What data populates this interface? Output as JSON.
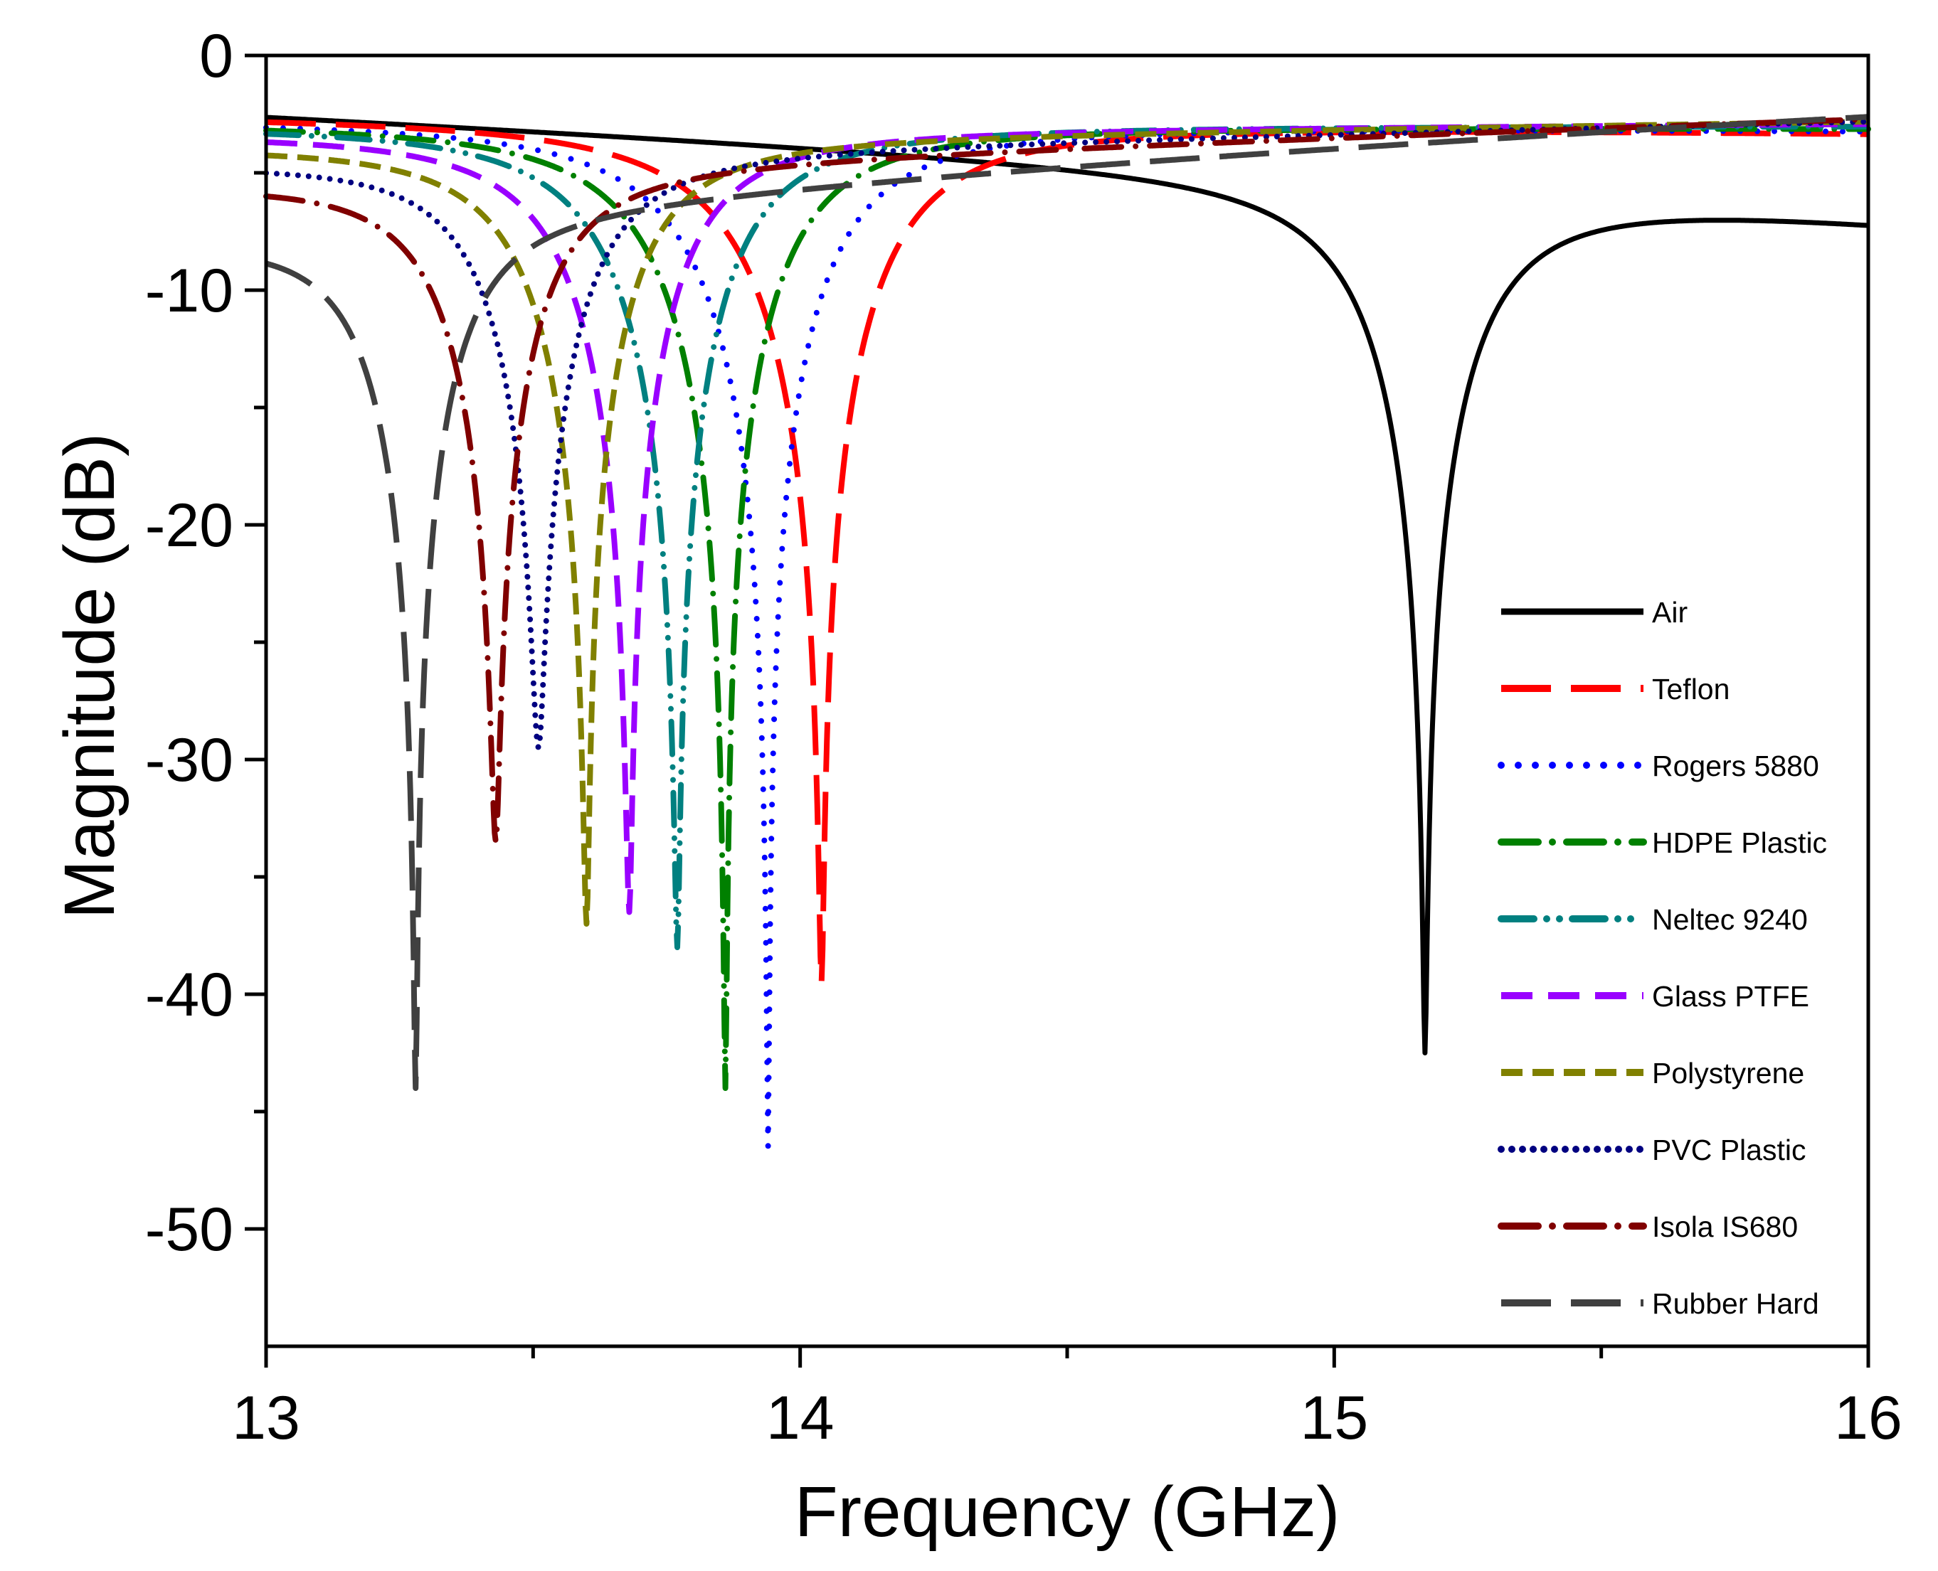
{
  "chart_data": {
    "type": "line",
    "title": "",
    "xlabel": "Frequency (GHz)",
    "ylabel": "Magnitude (dB)",
    "xlim": [
      13,
      16
    ],
    "ylim": [
      -55,
      0
    ],
    "xticks": [
      13,
      14,
      15,
      16
    ],
    "xtick_labels": [
      "13",
      "14",
      "15",
      "16"
    ],
    "xminor": [
      13.5,
      14.5,
      15.5
    ],
    "yticks": [
      0,
      -10,
      -20,
      -30,
      -40,
      -50
    ],
    "ytick_labels": [
      "0",
      "-10",
      "-20",
      "-30",
      "-40",
      "-50"
    ],
    "yminor": [
      -5,
      -15,
      -25,
      -35,
      -45
    ],
    "grid": false,
    "legend_position": "right",
    "series": [
      {
        "name": "Air",
        "color": "#000000",
        "dash": "solid",
        "f0": 15.17,
        "depth": -42.5,
        "start_db": -2.6,
        "end_db": -7.0,
        "width_low": 0.2,
        "width_high": 0.2
      },
      {
        "name": "Teflon",
        "color": "#ff0000",
        "dash": "long-dash",
        "f0": 14.04,
        "depth": -39.5,
        "start_db": -2.6,
        "end_db": -3.3,
        "width_low": 0.25,
        "width_high": 0.22
      },
      {
        "name": "Rogers 5880",
        "color": "#0000ff",
        "dash": "dot",
        "f0": 13.94,
        "depth": -46.5,
        "start_db": -2.8,
        "end_db": -3.2,
        "width_low": 0.24,
        "width_high": 0.21
      },
      {
        "name": "HDPE Plastic",
        "color": "#008000",
        "dash": "dash-dot",
        "f0": 13.86,
        "depth": -44.0,
        "start_db": -2.9,
        "end_db": -3.1,
        "width_low": 0.23,
        "width_high": 0.2
      },
      {
        "name": "Neltec 9240",
        "color": "#008080",
        "dash": "dash-dot-dot",
        "f0": 13.77,
        "depth": -38.0,
        "start_db": -3.0,
        "end_db": -3.0,
        "width_low": 0.22,
        "width_high": 0.19
      },
      {
        "name": "Glass PTFE",
        "color": "#9900ff",
        "dash": "medium-dash",
        "f0": 13.68,
        "depth": -36.5,
        "start_db": -3.3,
        "end_db": -2.9,
        "width_low": 0.21,
        "width_high": 0.18
      },
      {
        "name": "Polystyrene",
        "color": "#808000",
        "dash": "short-dash",
        "f0": 13.6,
        "depth": -37.0,
        "start_db": -3.8,
        "end_db": -2.8,
        "width_low": 0.2,
        "width_high": 0.17
      },
      {
        "name": "PVC Plastic",
        "color": "#000080",
        "dash": "short-dot",
        "f0": 13.51,
        "depth": -29.5,
        "start_db": -4.5,
        "end_db": -2.8,
        "width_low": 0.18,
        "width_high": 0.17
      },
      {
        "name": "Isola IS680",
        "color": "#800000",
        "dash": "dash-dot",
        "f0": 13.43,
        "depth": -33.5,
        "start_db": -5.3,
        "end_db": -2.7,
        "width_low": 0.18,
        "width_high": 0.16
      },
      {
        "name": "Rubber Hard",
        "color": "#404040",
        "dash": "long-dash",
        "f0": 13.28,
        "depth": -44.0,
        "start_db": -7.5,
        "end_db": -2.6,
        "width_low": 0.17,
        "width_high": 0.15
      }
    ]
  }
}
